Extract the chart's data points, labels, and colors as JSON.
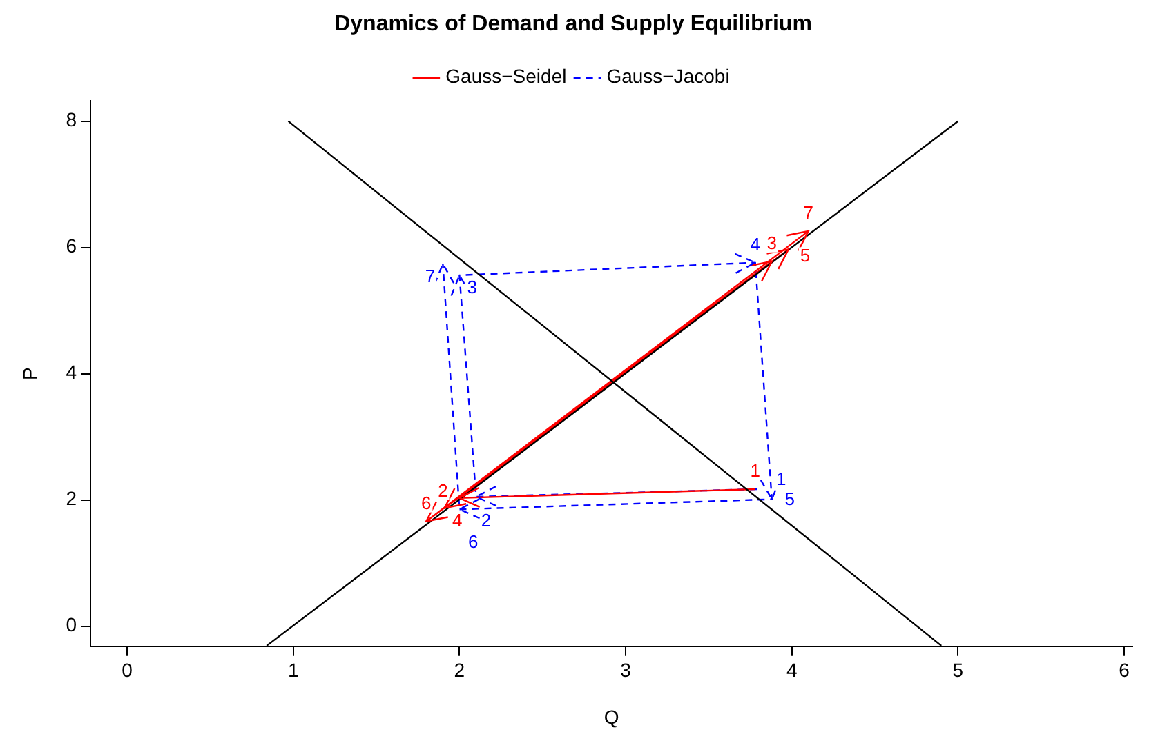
{
  "chart_data": {
    "type": "line",
    "title": "Dynamics of Demand and Supply Equilibrium",
    "xlabel": "Q",
    "ylabel": "P",
    "xlim": [
      -0.22,
      6.05
    ],
    "ylim": [
      -0.32,
      8.32
    ],
    "xticks": [
      0,
      1,
      2,
      3,
      4,
      5,
      6
    ],
    "yticks": [
      0,
      2,
      4,
      6,
      8
    ],
    "grid": false,
    "legend": "top",
    "annotations": [
      {
        "text": "1",
        "x": 3.78,
        "y": 2.17
      },
      {
        "text": "2",
        "x": 2.0,
        "y": 2.03
      },
      {
        "text": "3",
        "x": 3.88,
        "y": 5.78
      },
      {
        "text": "4",
        "x": 1.91,
        "y": 1.87
      },
      {
        "text": "5",
        "x": 3.98,
        "y": 5.97
      },
      {
        "text": "6",
        "x": 1.8,
        "y": 1.66
      },
      {
        "text": "7",
        "x": 4.1,
        "y": 6.26
      },
      {
        "text": "1",
        "x": 3.79,
        "y": 2.17
      },
      {
        "text": "2",
        "x": 2.1,
        "y": 2.05
      },
      {
        "text": "3",
        "x": 2.0,
        "y": 5.56
      },
      {
        "text": "4",
        "x": 3.78,
        "y": 5.76
      },
      {
        "text": "5",
        "x": 3.88,
        "y": 2.01
      },
      {
        "text": "6",
        "x": 2.0,
        "y": 1.85
      },
      {
        "text": "7",
        "x": 1.9,
        "y": 5.74
      }
    ],
    "series": [
      {
        "color": "#000000",
        "x": [
          0.97,
          4.9
        ],
        "values": [
          8,
          -0.31
        ]
      },
      {
        "color": "#000000",
        "x": [
          0.84,
          5.0
        ],
        "values": [
          -0.31,
          8
        ]
      },
      {
        "name": "Gauss−Seidel",
        "color": "#ff0000",
        "line_style": "solid",
        "x": [
          3.78,
          2.0,
          3.88,
          1.91,
          3.98,
          1.8,
          4.1
        ],
        "values": [
          2.17,
          2.03,
          5.78,
          1.87,
          5.97,
          1.66,
          6.26
        ]
      },
      {
        "name": "Gauss−Jacobi",
        "color": "#0000ff",
        "line_style": "dashed",
        "x": [
          3.79,
          2.1,
          2.0,
          3.78,
          3.88,
          2.0,
          1.9
        ],
        "values": [
          2.17,
          2.05,
          5.56,
          5.76,
          2.01,
          1.85,
          5.74
        ]
      }
    ]
  }
}
